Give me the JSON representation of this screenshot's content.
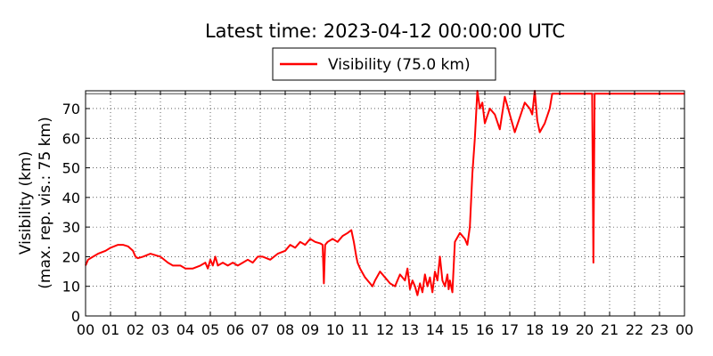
{
  "chart_data": {
    "type": "line",
    "title": "Latest time: 2023-04-12 00:00:00 UTC",
    "ylabel_line1": "Visibility (km)",
    "ylabel_line2": "(max. rep. vis.: 75 km)",
    "xlabel": "",
    "xlim": [
      0,
      24
    ],
    "ylim": [
      0,
      76
    ],
    "grid": true,
    "legend_placement": "top-center",
    "x_ticks": [
      0,
      1,
      2,
      3,
      4,
      5,
      6,
      7,
      8,
      9,
      10,
      11,
      12,
      13,
      14,
      15,
      16,
      17,
      18,
      19,
      20,
      21,
      22,
      23,
      24
    ],
    "x_tick_labels": [
      "00",
      "01",
      "02",
      "03",
      "04",
      "05",
      "06",
      "07",
      "08",
      "09",
      "10",
      "11",
      "12",
      "13",
      "14",
      "15",
      "16",
      "17",
      "18",
      "19",
      "20",
      "21",
      "22",
      "23",
      "00"
    ],
    "y_ticks": [
      0,
      10,
      20,
      30,
      40,
      50,
      60,
      70
    ],
    "y_tick_labels": [
      "0",
      "10",
      "20",
      "30",
      "40",
      "50",
      "60",
      "70"
    ],
    "reference_line": 75,
    "series": [
      {
        "name": "Visibility (75.0 km)",
        "color": "#ff0000",
        "x": [
          0.0,
          0.1,
          0.3,
          0.5,
          0.8,
          1.0,
          1.3,
          1.5,
          1.7,
          1.9,
          2.0,
          2.1,
          2.3,
          2.6,
          3.0,
          3.3,
          3.5,
          3.8,
          4.0,
          4.3,
          4.6,
          4.8,
          4.9,
          5.0,
          5.1,
          5.2,
          5.3,
          5.5,
          5.7,
          5.9,
          6.1,
          6.3,
          6.5,
          6.7,
          6.9,
          7.1,
          7.4,
          7.7,
          8.0,
          8.2,
          8.4,
          8.6,
          8.8,
          9.0,
          9.2,
          9.4,
          9.5,
          9.55,
          9.6,
          9.7,
          9.9,
          10.1,
          10.3,
          10.5,
          10.65,
          10.75,
          10.85,
          10.9,
          11.0,
          11.2,
          11.4,
          11.5,
          11.6,
          11.8,
          12.0,
          12.2,
          12.4,
          12.6,
          12.8,
          12.9,
          13.0,
          13.1,
          13.2,
          13.3,
          13.4,
          13.5,
          13.6,
          13.7,
          13.8,
          13.9,
          14.0,
          14.1,
          14.2,
          14.3,
          14.4,
          14.5,
          14.55,
          14.6,
          14.7,
          14.8,
          15.0,
          15.2,
          15.3,
          15.4,
          15.5,
          15.6,
          15.7,
          15.8,
          15.9,
          16.0,
          16.2,
          16.4,
          16.6,
          16.8,
          17.0,
          17.2,
          17.4,
          17.6,
          17.8,
          17.9,
          18.0,
          18.1,
          18.2,
          18.4,
          18.6,
          18.7,
          18.8,
          19.0,
          19.5,
          20.0,
          20.2,
          20.27,
          20.3,
          20.35,
          20.4,
          20.5,
          21.0,
          22.0,
          23.0,
          24.0
        ],
        "values": [
          17,
          19,
          20,
          21,
          22,
          23,
          24,
          24,
          23.5,
          22,
          20,
          19.5,
          20,
          21,
          20,
          18,
          17,
          17,
          16,
          16,
          17,
          18,
          16,
          19,
          17,
          20,
          17,
          18,
          17,
          18,
          17,
          18,
          19,
          18,
          20,
          20,
          19,
          21,
          22,
          24,
          23,
          25,
          24,
          26,
          25,
          24.5,
          24,
          11,
          24,
          25,
          26,
          25,
          27,
          28,
          29,
          25,
          20,
          18,
          16,
          13,
          11,
          10,
          12,
          15,
          13,
          11,
          10,
          14,
          12,
          16,
          9,
          12,
          10,
          7,
          11,
          8,
          14,
          10,
          13,
          8,
          15,
          12,
          20,
          12,
          10,
          14,
          9,
          12,
          8,
          25,
          28,
          26,
          24,
          30,
          48,
          60,
          76,
          70,
          72,
          65,
          70,
          68,
          63,
          74,
          68,
          62,
          67,
          72,
          70,
          68,
          76,
          66,
          62,
          65,
          70,
          75,
          75,
          75,
          75,
          75,
          75,
          75,
          75,
          18,
          75,
          75,
          75,
          75,
          75,
          75
        ]
      }
    ]
  }
}
